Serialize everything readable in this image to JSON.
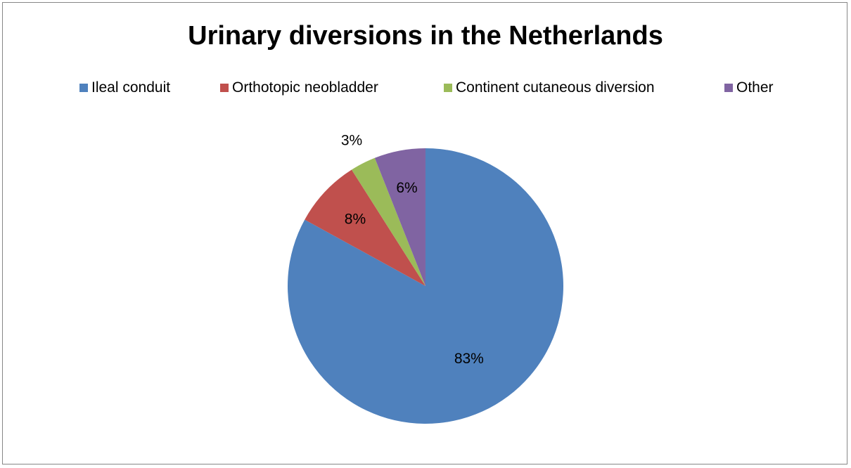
{
  "chart_data": {
    "type": "pie",
    "title": "Urinary diversions in the Netherlands",
    "legend_position": "top",
    "categories": [
      "Ileal conduit",
      "Orthotopic neobladder",
      "Continent cutaneous diversion",
      "Other"
    ],
    "values": [
      83,
      8,
      3,
      6
    ],
    "data_labels": [
      "83%",
      "8%",
      "3%",
      "6%"
    ],
    "colors": [
      "#4F81BD",
      "#C0504D",
      "#9BBB59",
      "#8064A2"
    ]
  }
}
